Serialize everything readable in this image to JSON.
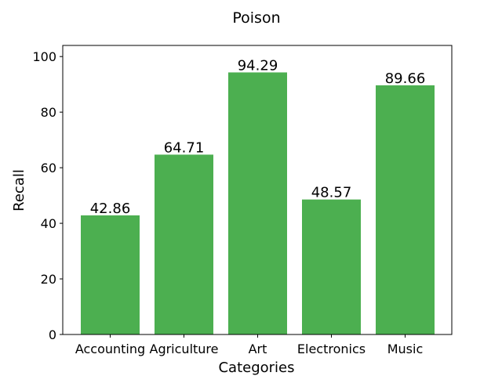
{
  "chart_data": {
    "type": "bar",
    "title": "Poison",
    "xlabel": "Categories",
    "ylabel": "Recall",
    "categories": [
      "Accounting",
      "Agriculture",
      "Art",
      "Electronics",
      "Music"
    ],
    "values": [
      42.86,
      64.71,
      94.29,
      48.57,
      89.66
    ],
    "data_labels": [
      "42.86",
      "64.71",
      "94.29",
      "48.57",
      "89.66"
    ],
    "ylim": [
      0,
      104
    ],
    "yticks": [
      0,
      20,
      40,
      60,
      80,
      100
    ],
    "ytick_labels": [
      "0",
      "20",
      "40",
      "60",
      "80",
      "100"
    ],
    "bar_color": "#4caf50",
    "grid": false,
    "legend": "none"
  }
}
